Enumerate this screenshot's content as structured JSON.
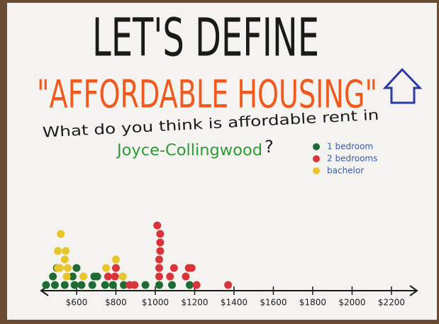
{
  "chart_data": {
    "type": "dotplot",
    "title": "LET'S DEFINE",
    "subtitle": "\"AFFORDABLE HOUSING\"",
    "question": "What do you think is affordable rent in",
    "location": "Joyce-Collingwood",
    "question_end": "?",
    "xlim": [
      420,
      2330
    ],
    "xticks": [
      {
        "value": 600,
        "label": "$600"
      },
      {
        "value": 800,
        "label": "$800"
      },
      {
        "value": 1000,
        "label": "$1000"
      },
      {
        "value": 1200,
        "label": "$1200"
      },
      {
        "value": 1400,
        "label": "$1400"
      },
      {
        "value": 1600,
        "label": "$1600"
      },
      {
        "value": 1800,
        "label": "$1800"
      },
      {
        "value": 2000,
        "label": "$2000"
      },
      {
        "value": 2200,
        "label": "$2200"
      }
    ],
    "series": [
      {
        "name": "1 bedroom",
        "color": "#1f6b34",
        "x": [
          445,
          490,
          480,
          500,
          540,
          590,
          625,
          580,
          600,
          680,
          690,
          705,
          745,
          785,
          840,
          950,
          1020,
          1085,
          1175
        ]
      },
      {
        "name": "2 bedrooms",
        "color": "#d8343a",
        "x": [
          760,
          795,
          800,
          895,
          870,
          1020,
          1020,
          1020,
          1025,
          1075,
          1025,
          1025,
          1010,
          1095,
          1155,
          1170,
          1185,
          1210,
          1370
        ]
      },
      {
        "name": "bachelor",
        "color": "#e6c62a",
        "x": [
          505,
          550,
          515,
          555,
          505,
          540,
          545,
          520,
          750,
          800,
          835,
          635
        ]
      }
    ]
  }
}
